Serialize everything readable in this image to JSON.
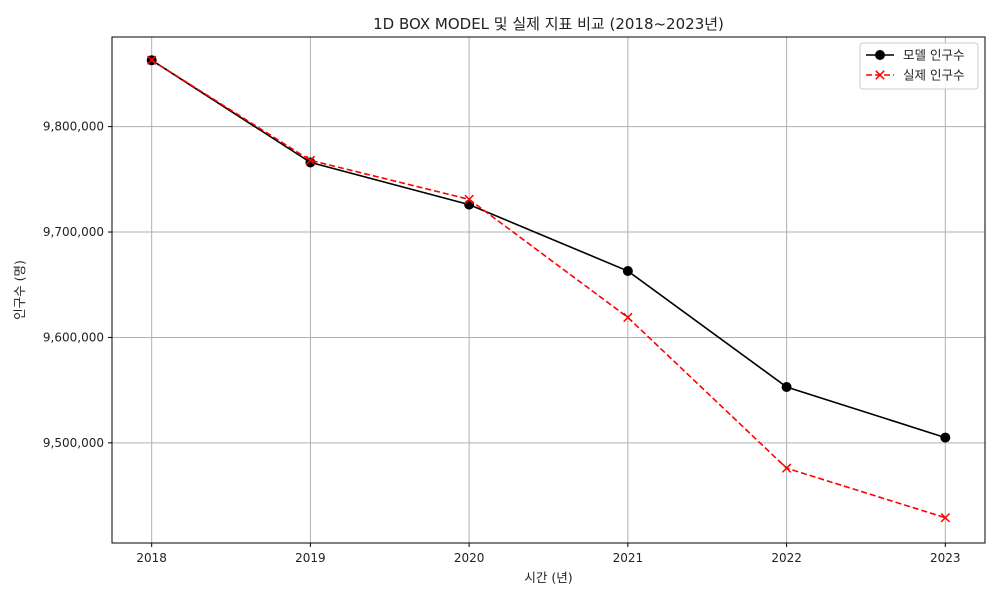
{
  "chart_data": {
    "type": "line",
    "title": "1D BOX MODEL 및 실제 지표 비교 (2018~2023년)",
    "xlabel": "시간 (년)",
    "ylabel": "인구수 (명)",
    "x": [
      2018,
      2019,
      2020,
      2021,
      2022,
      2023
    ],
    "xlim": [
      2017.75,
      2023.25
    ],
    "ylim": [
      9405000,
      9885000
    ],
    "yticks": [
      9500000,
      9600000,
      9700000,
      9800000
    ],
    "grid": true,
    "legend_position": "top-right",
    "series": [
      {
        "name": "모델 인구수",
        "values": [
          9863000,
          9766000,
          9726000,
          9663000,
          9553000,
          9505000
        ],
        "color": "#000000",
        "line_style": "solid",
        "marker": "circle"
      },
      {
        "name": "실제 인구수",
        "values": [
          9863000,
          9768000,
          9731000,
          9619000,
          9476000,
          9429000
        ],
        "color": "#ff0000",
        "line_style": "dashed",
        "marker": "x"
      }
    ]
  }
}
